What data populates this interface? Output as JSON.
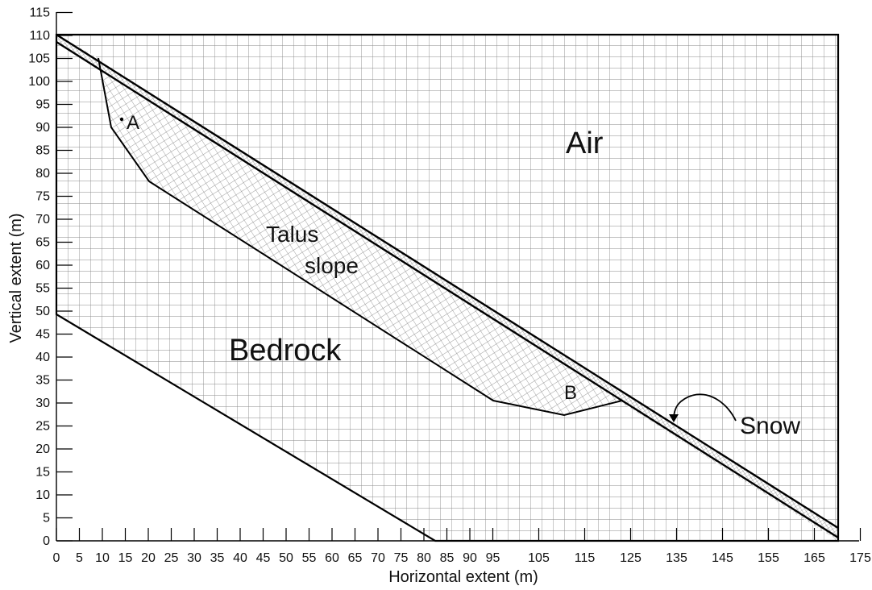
{
  "axes": {
    "xlabel": "Horizontal extent (m)",
    "ylabel": "Vertical extent (m)",
    "x_ticks": [
      "0",
      "5",
      "10",
      "15",
      "20",
      "25",
      "30",
      "35",
      "40",
      "45",
      "50",
      "55",
      "60",
      "65",
      "70",
      "75",
      "80",
      "85",
      "90",
      "95",
      "105",
      "115",
      "125",
      "135",
      "145",
      "155",
      "165",
      "175"
    ],
    "y_ticks": [
      "0",
      "5",
      "10",
      "15",
      "20",
      "25",
      "30",
      "35",
      "40",
      "45",
      "50",
      "55",
      "60",
      "65",
      "70",
      "75",
      "80",
      "85",
      "90",
      "95",
      "100",
      "105",
      "110",
      "115"
    ]
  },
  "regions": {
    "air": "Air",
    "bedrock": "Bedrock",
    "talus_line1": "Talus",
    "talus_line2": "slope",
    "snow": "Snow"
  },
  "points": {
    "a": "A",
    "b": "B"
  },
  "colors": {
    "mesh": "#7a7a7a",
    "boundary": "#000000"
  }
}
